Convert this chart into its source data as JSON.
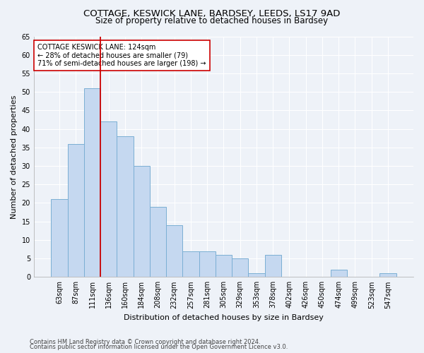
{
  "title1": "COTTAGE, KESWICK LANE, BARDSEY, LEEDS, LS17 9AD",
  "title2": "Size of property relative to detached houses in Bardsey",
  "xlabel": "Distribution of detached houses by size in Bardsey",
  "ylabel": "Number of detached properties",
  "categories": [
    "63sqm",
    "87sqm",
    "111sqm",
    "136sqm",
    "160sqm",
    "184sqm",
    "208sqm",
    "232sqm",
    "257sqm",
    "281sqm",
    "305sqm",
    "329sqm",
    "353sqm",
    "378sqm",
    "402sqm",
    "426sqm",
    "450sqm",
    "474sqm",
    "499sqm",
    "523sqm",
    "547sqm"
  ],
  "values": [
    21,
    36,
    51,
    42,
    38,
    30,
    19,
    14,
    7,
    7,
    6,
    5,
    1,
    6,
    0,
    0,
    0,
    2,
    0,
    0,
    1
  ],
  "bar_color": "#c5d8f0",
  "bar_edge_color": "#7bafd4",
  "vline_color": "#cc0000",
  "annotation_text": "COTTAGE KESWICK LANE: 124sqm\n← 28% of detached houses are smaller (79)\n71% of semi-detached houses are larger (198) →",
  "annotation_box_color": "#ffffff",
  "annotation_box_edge": "#cc0000",
  "ylim": [
    0,
    65
  ],
  "yticks": [
    0,
    5,
    10,
    15,
    20,
    25,
    30,
    35,
    40,
    45,
    50,
    55,
    60,
    65
  ],
  "footer1": "Contains HM Land Registry data © Crown copyright and database right 2024.",
  "footer2": "Contains public sector information licensed under the Open Government Licence v3.0.",
  "bg_color": "#eef2f8",
  "grid_color": "#ffffff",
  "title1_fontsize": 9.5,
  "title2_fontsize": 8.5,
  "ylabel_fontsize": 8,
  "xlabel_fontsize": 8,
  "tick_fontsize": 7,
  "footer_fontsize": 6,
  "annot_fontsize": 7
}
